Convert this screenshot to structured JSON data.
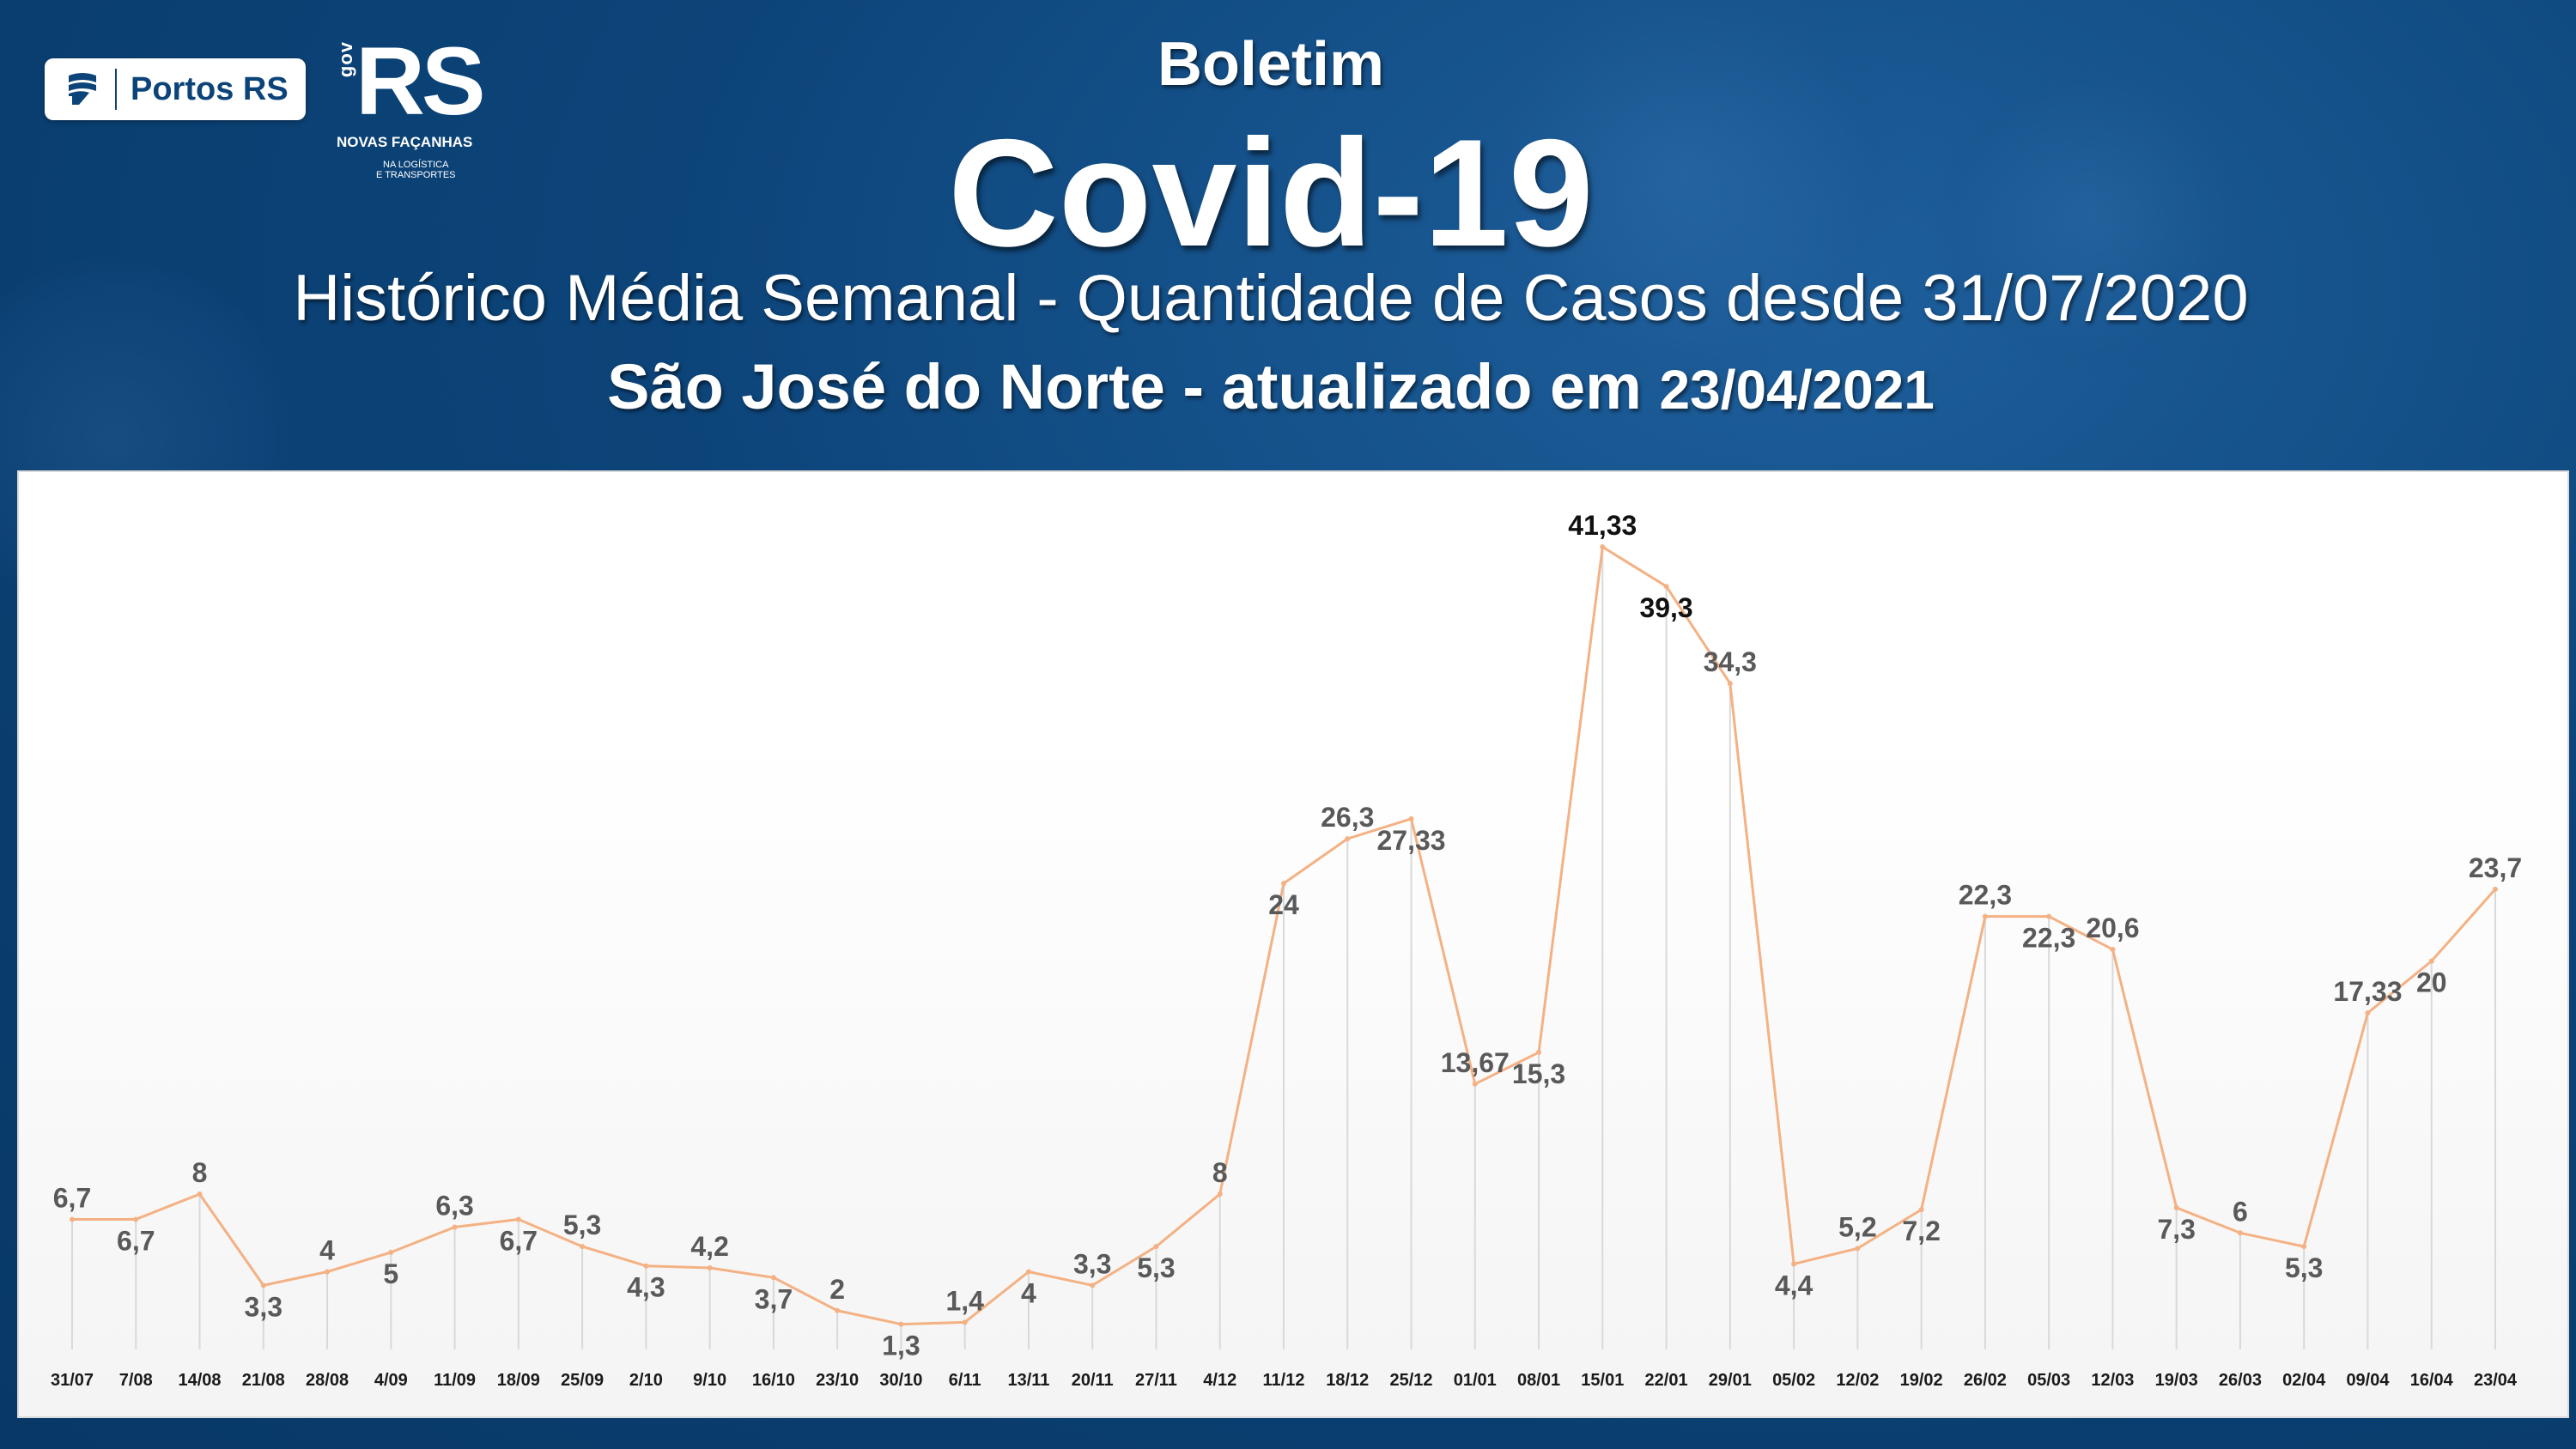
{
  "header": {
    "logo_portos": "Portos RS",
    "logo_rs_gov": "gov",
    "logo_rs_main": "RS",
    "logo_rs_tagline": "NOVAS FAÇANHAS",
    "logo_rs_sub1": "NA LOGÍSTICA",
    "logo_rs_sub2": "E TRANSPORTES",
    "kicker": "Boletim",
    "title": "Covid-19",
    "subtitle": "Histórico Média Semanal - Quantidade de Casos desde 31/07/2020",
    "location_line": "São José do Norte - atualizado em",
    "updated_date": "23/04/2021"
  },
  "colors": {
    "line": "#f4b183",
    "label": "#595959",
    "label_peak": "#111111",
    "axis_text": "#1a1a1a"
  },
  "chart_data": {
    "type": "line",
    "categories": [
      "31/07",
      "7/08",
      "14/08",
      "21/08",
      "28/08",
      "4/09",
      "11/09",
      "18/09",
      "25/09",
      "2/10",
      "9/10",
      "16/10",
      "23/10",
      "30/10",
      "6/11",
      "13/11",
      "20/11",
      "27/11",
      "4/12",
      "11/12",
      "18/12",
      "25/12",
      "01/01",
      "08/01",
      "15/01",
      "22/01",
      "29/01",
      "05/02",
      "12/02",
      "19/02",
      "26/02",
      "05/03",
      "12/03",
      "19/03",
      "26/03",
      "02/04",
      "09/04",
      "16/04",
      "23/04"
    ],
    "values": [
      6.7,
      6.7,
      8,
      3.3,
      4,
      5,
      6.3,
      6.7,
      5.3,
      4.3,
      4.2,
      3.7,
      2,
      1.3,
      1.4,
      4,
      3.3,
      5.3,
      8,
      24,
      26.3,
      27.33,
      13.67,
      15.3,
      41.33,
      39.3,
      34.3,
      4.4,
      5.2,
      7.2,
      22.3,
      22.3,
      20.6,
      7.3,
      6,
      5.3,
      17.33,
      20,
      23.7
    ],
    "data_labels": [
      "6,7",
      "6,7",
      "8",
      "3,3",
      "4",
      "5",
      "6,3",
      "6,7",
      "5,3",
      "4,3",
      "4,2",
      "3,7",
      "2",
      "1,3",
      "1,4",
      "4",
      "3,3",
      "5,3",
      "8",
      "24",
      "26,3",
      "27,33",
      "13,67",
      "15,3",
      "41,33",
      "39,3",
      "34,3",
      "4,4",
      "5,2",
      "7,2",
      "22,3",
      "22,3",
      "20,6",
      "7,3",
      "6",
      "5,3",
      "17,33",
      "20",
      "23,7"
    ],
    "ylim": [
      0,
      42
    ],
    "drop_lines": true,
    "grid": false,
    "legend": "none"
  }
}
